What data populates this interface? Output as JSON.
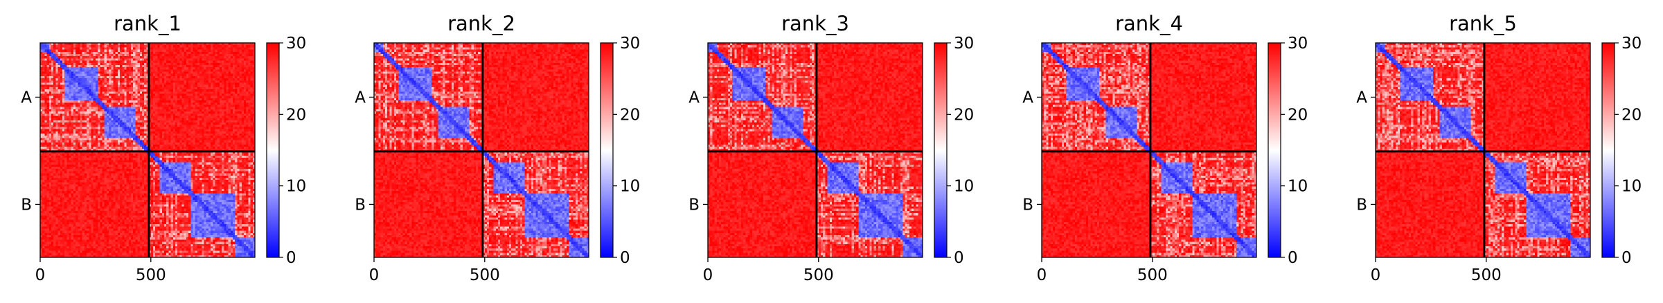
{
  "chart_data": {
    "type": "heatmap",
    "colormap": {
      "low": "#0000ff",
      "mid": "#ffffff",
      "high": "#ff0000"
    },
    "chain_labels": [
      "A",
      "B"
    ],
    "chain_boundary": 491,
    "n_residues": 970,
    "domains": [
      [
        0,
        40
      ],
      [
        110,
        260
      ],
      [
        295,
        430
      ],
      [
        545,
        680
      ],
      [
        680,
        880
      ],
      [
        880,
        970
      ]
    ],
    "colorbar": {
      "min": 0,
      "max": 30,
      "ticks": [
        "0",
        "10",
        "20",
        "30"
      ]
    },
    "x_ticks": [
      {
        "value": 0,
        "label": "0"
      },
      {
        "value": 500,
        "label": "500"
      }
    ],
    "panels": [
      {
        "title": "rank_1",
        "seed": 11
      },
      {
        "title": "rank_2",
        "seed": 23
      },
      {
        "title": "rank_3",
        "seed": 37
      },
      {
        "title": "rank_4",
        "seed": 41
      },
      {
        "title": "rank_5",
        "seed": 59
      }
    ]
  }
}
